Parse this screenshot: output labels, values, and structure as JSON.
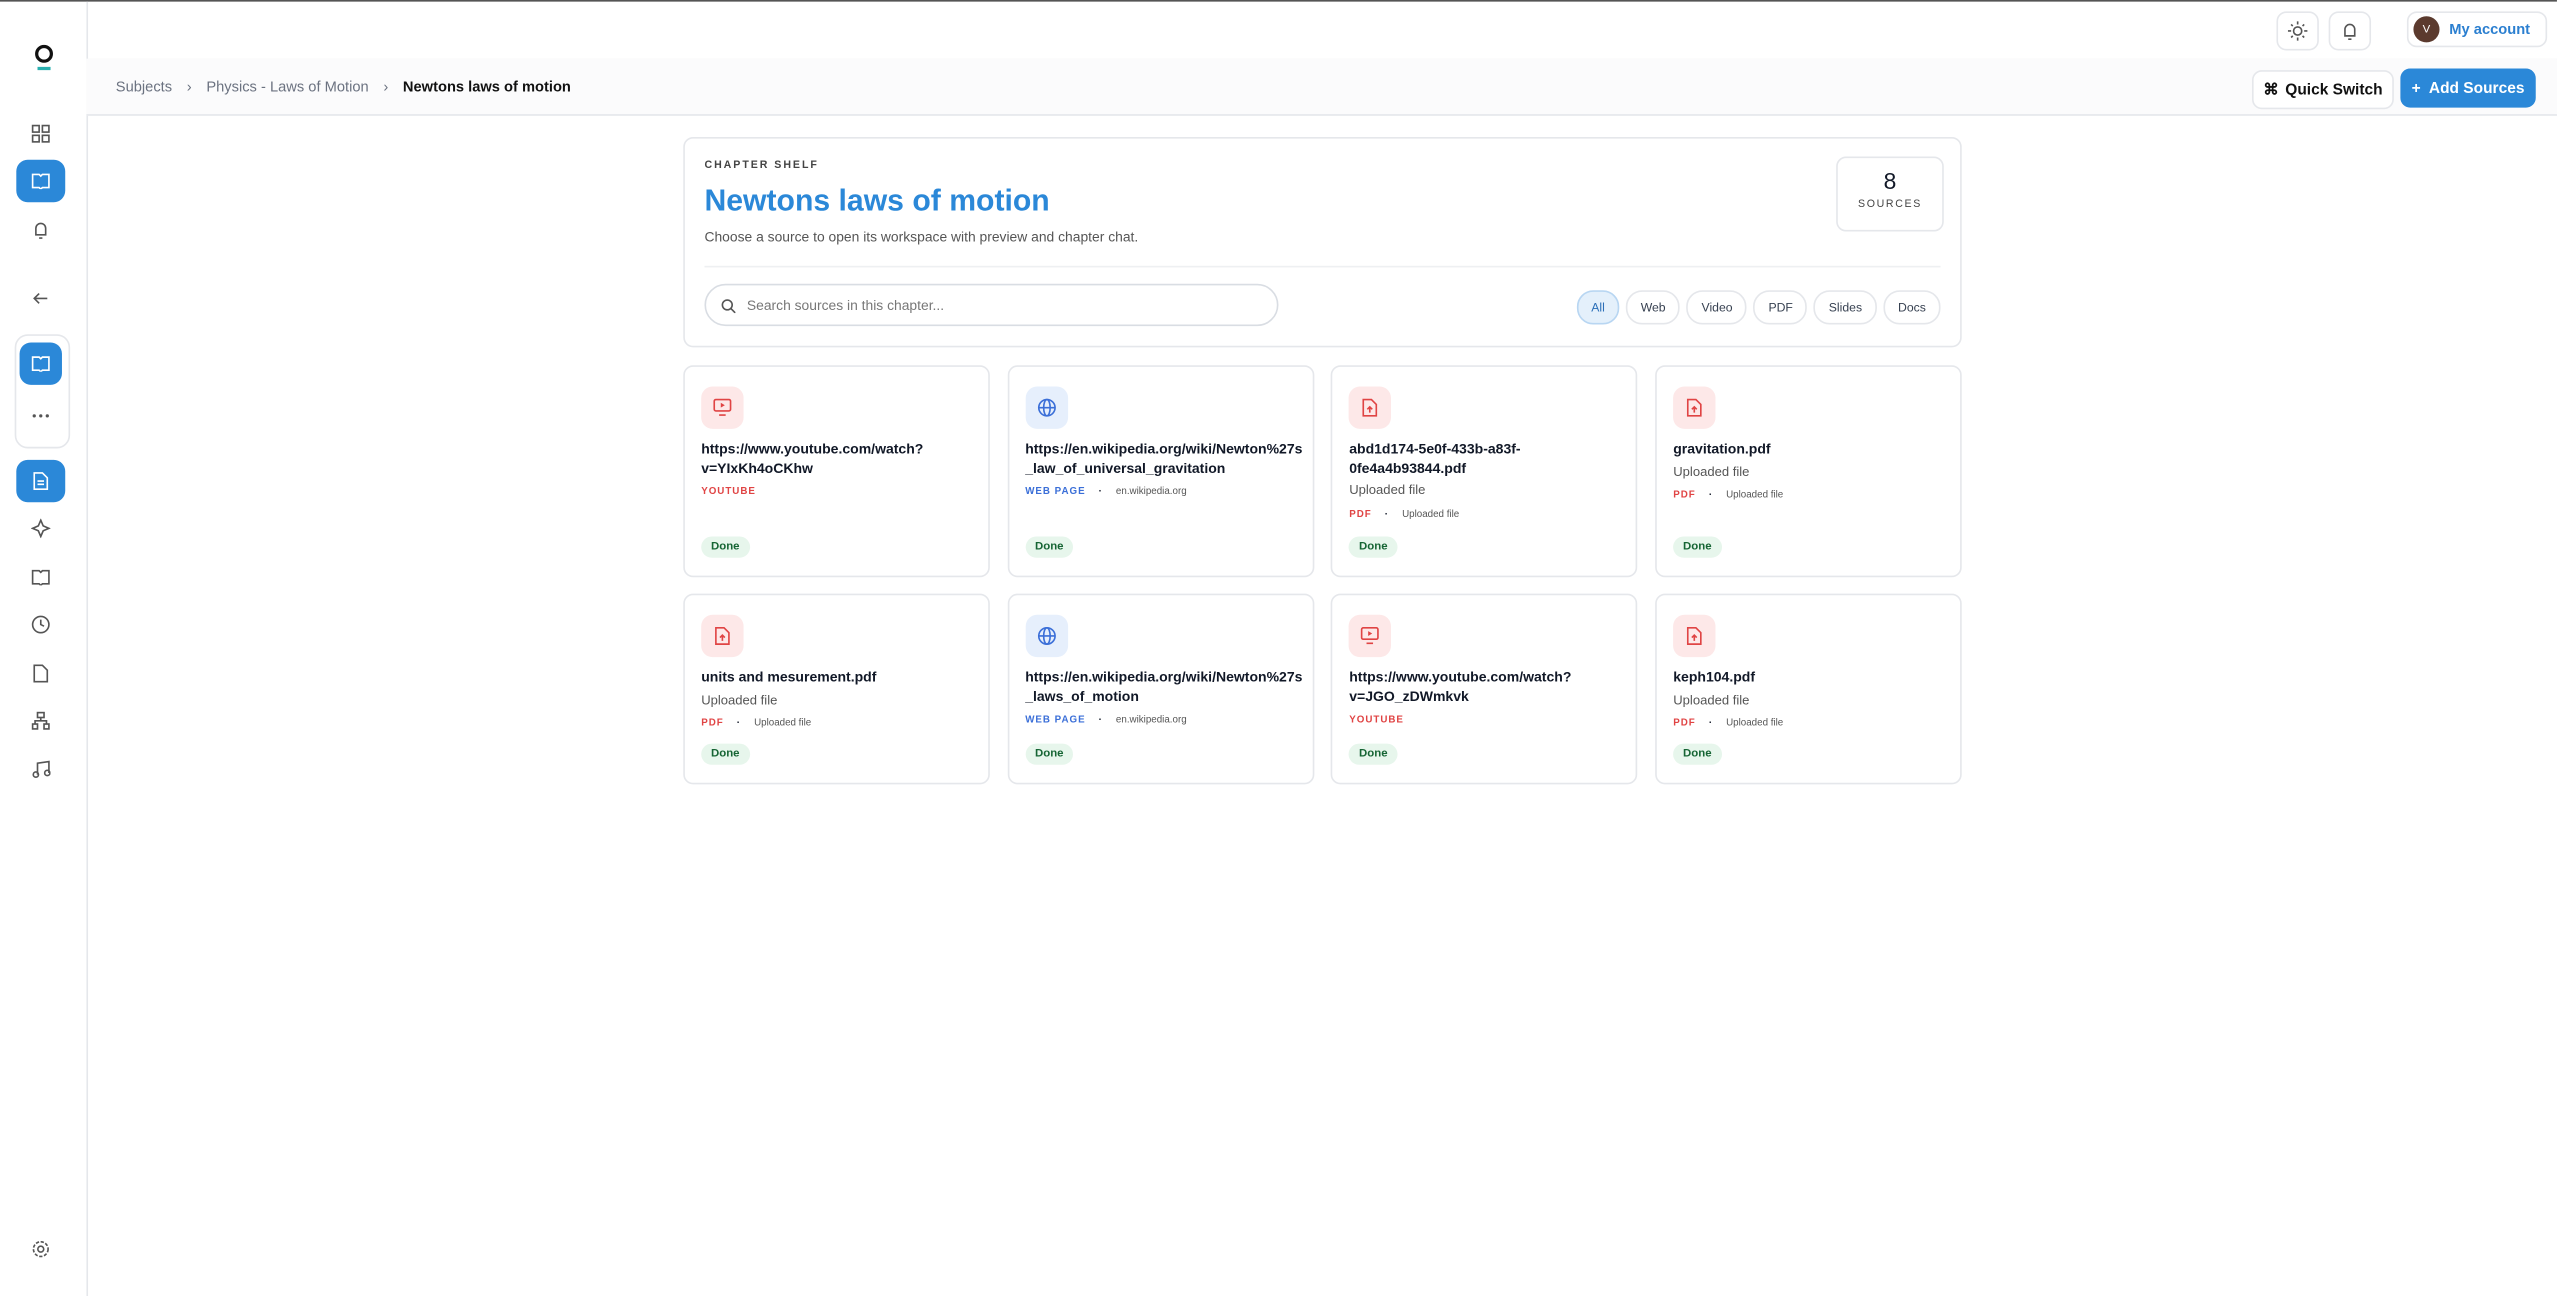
{
  "topbar": {
    "account_initial": "V",
    "account": "My account"
  },
  "breadcrumbs": [
    "Subjects",
    "Physics - Laws of Motion",
    "Newtons laws of motion"
  ],
  "actions": {
    "quick_switch": "Quick Switch",
    "add_sources": "Add Sources"
  },
  "shelf": {
    "eyebrow": "CHAPTER SHELF",
    "title": "Newtons laws of motion",
    "description": "Choose a source to open its workspace with preview and chapter chat.",
    "count": 8,
    "count_label": "SOURCES",
    "search_placeholder": "Search sources in this chapter...",
    "filters": [
      "All",
      "Web",
      "Video",
      "PDF",
      "Slides",
      "Docs"
    ]
  },
  "sources": [
    {
      "icon": "video",
      "title": "https://www.youtube.com/watch?v=YIxKh4oCKhw",
      "tag": "YOUTUBE",
      "status": "Done"
    },
    {
      "icon": "web",
      "title": "https://en.wikipedia.org/wiki/Newton%27s_law_of_universal_gravitation",
      "tag": "WEB PAGE",
      "meta": "en.wikipedia.org",
      "status": "Done"
    },
    {
      "icon": "pdf",
      "title": "abd1d174-5e0f-433b-a83f-0fe4a4b93844.pdf",
      "subtitle": "Uploaded file",
      "tag": "PDF",
      "meta": "Uploaded file",
      "status": "Done"
    },
    {
      "icon": "pdf",
      "title": "gravitation.pdf",
      "subtitle": "Uploaded file",
      "tag": "PDF",
      "meta": "Uploaded file",
      "status": "Done"
    },
    {
      "icon": "pdf",
      "title": "units and mesurement.pdf",
      "subtitle": "Uploaded file",
      "tag": "PDF",
      "meta": "Uploaded file",
      "status": "Done"
    },
    {
      "icon": "web",
      "title": "https://en.wikipedia.org/wiki/Newton%27s_laws_of_motion",
      "tag": "WEB PAGE",
      "meta": "en.wikipedia.org",
      "status": "Done"
    },
    {
      "icon": "video",
      "title": "https://www.youtube.com/watch?v=JGO_zDWmkvk",
      "tag": "YOUTUBE",
      "status": "Done"
    },
    {
      "icon": "pdf",
      "title": "keph104.pdf",
      "subtitle": "Uploaded file",
      "tag": "PDF",
      "meta": "Uploaded file",
      "status": "Done"
    }
  ]
}
